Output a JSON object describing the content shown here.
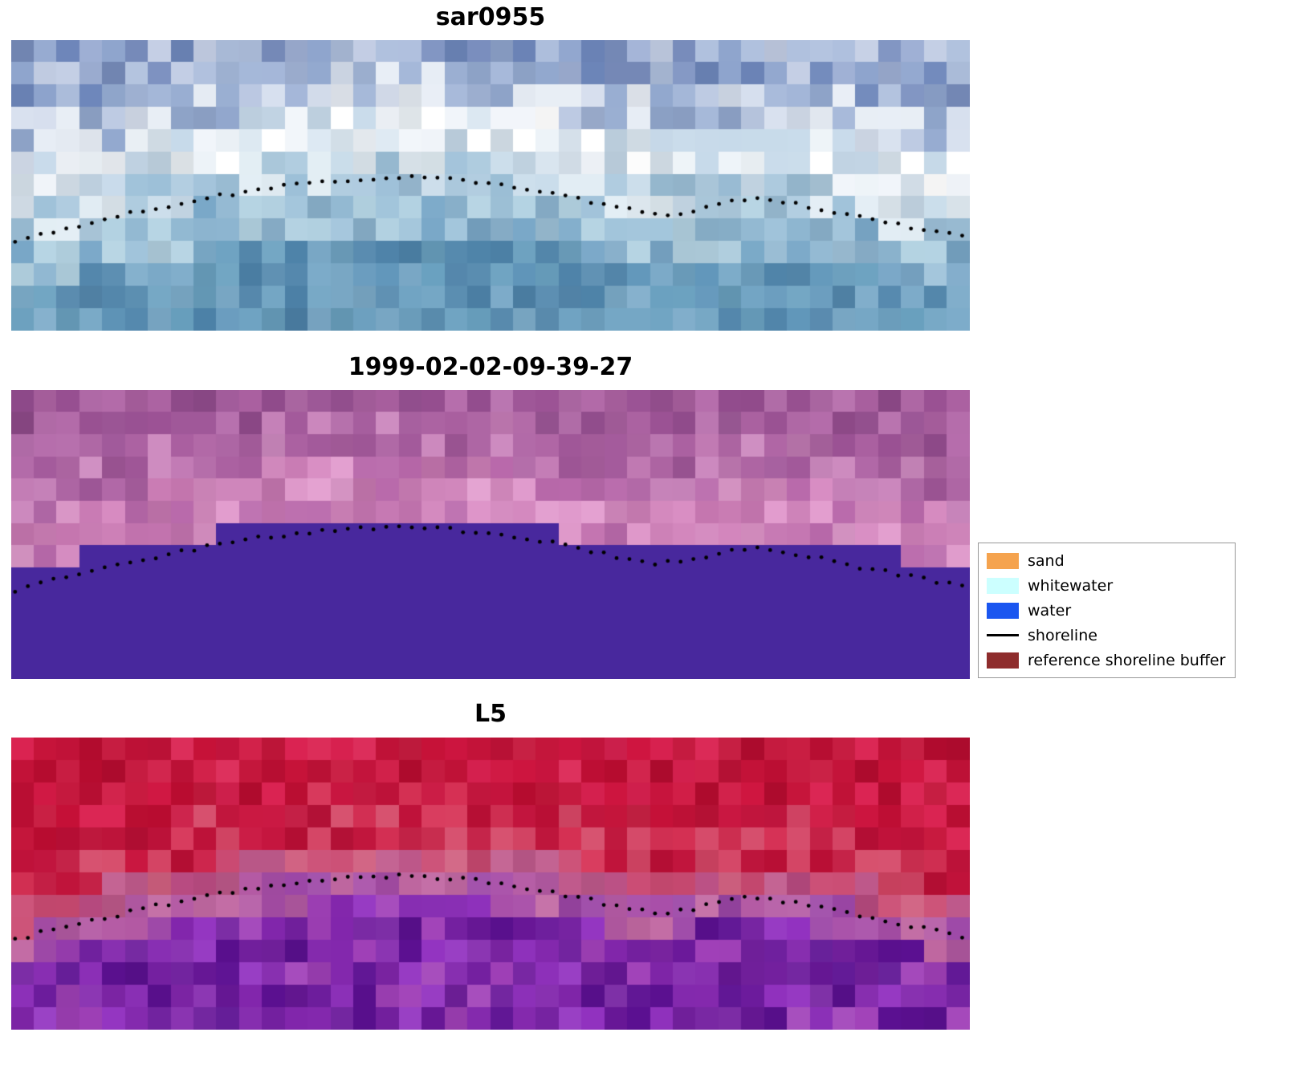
{
  "legend": {
    "items": [
      {
        "label": "sand",
        "swatch": "rect",
        "color": "#f5a34e"
      },
      {
        "label": "whitewater",
        "swatch": "rect",
        "color": "#ccffff"
      },
      {
        "label": "water",
        "swatch": "rect",
        "color": "#1a56f0"
      },
      {
        "label": "shoreline",
        "swatch": "line",
        "color": "#000000"
      },
      {
        "label": "reference shoreline buffer",
        "swatch": "rect",
        "color": "#8e2c2c"
      }
    ],
    "position": "outside center-right of middle panel"
  },
  "chart_data": {
    "type": "heatmap",
    "description": "Shoreline-detection figure with three co-registered coastal raster panels (SAR backscatter image, classified composite, Landsat 5 false-color) sharing one detected shoreline overlaid as small black dots; no axes or gridlines; legend at right.",
    "grid": false,
    "axes": "none",
    "dot_color": "#000000",
    "dot_radius_px": 2.4,
    "dot_count": 74,
    "noise": 0.16,
    "shoreline_xy": [
      [
        0.005,
        0.695
      ],
      [
        0.03,
        0.67
      ],
      [
        0.06,
        0.645
      ],
      [
        0.09,
        0.622
      ],
      [
        0.12,
        0.6
      ],
      [
        0.15,
        0.578
      ],
      [
        0.18,
        0.558
      ],
      [
        0.21,
        0.54
      ],
      [
        0.24,
        0.522
      ],
      [
        0.27,
        0.508
      ],
      [
        0.3,
        0.497
      ],
      [
        0.33,
        0.488
      ],
      [
        0.36,
        0.481
      ],
      [
        0.39,
        0.476
      ],
      [
        0.42,
        0.475
      ],
      [
        0.45,
        0.479
      ],
      [
        0.48,
        0.489
      ],
      [
        0.51,
        0.501
      ],
      [
        0.54,
        0.515
      ],
      [
        0.57,
        0.532
      ],
      [
        0.6,
        0.553
      ],
      [
        0.63,
        0.575
      ],
      [
        0.655,
        0.592
      ],
      [
        0.675,
        0.6
      ],
      [
        0.695,
        0.596
      ],
      [
        0.715,
        0.582
      ],
      [
        0.735,
        0.565
      ],
      [
        0.755,
        0.551
      ],
      [
        0.77,
        0.546
      ],
      [
        0.785,
        0.549
      ],
      [
        0.805,
        0.558
      ],
      [
        0.825,
        0.57
      ],
      [
        0.845,
        0.584
      ],
      [
        0.865,
        0.598
      ],
      [
        0.885,
        0.612
      ],
      [
        0.905,
        0.624
      ],
      [
        0.925,
        0.636
      ],
      [
        0.945,
        0.648
      ],
      [
        0.965,
        0.661
      ],
      [
        0.985,
        0.674
      ],
      [
        0.998,
        0.682
      ]
    ],
    "panels": [
      {
        "title": "sar0955",
        "kind": "sar-backscatter-rgb",
        "seed": 7,
        "grid": {
          "cols": 42,
          "rows": 13
        },
        "bands": [
          {
            "until": -0.42,
            "colors": [
              "#7b90c0",
              "#9fb0d5",
              "#6d86ba",
              "#c2cde4",
              "#8ea4cd",
              "#aebfdd"
            ]
          },
          {
            "until": -0.26,
            "colors": [
              "#b9c7e1",
              "#d6dfee",
              "#93a9cf",
              "#e7edf5",
              "#a3b6d8"
            ]
          },
          {
            "until": -0.1,
            "colors": [
              "#f1f5fa",
              "#ffffff",
              "#dce8f2",
              "#c7daea",
              "#edf3f8"
            ]
          },
          {
            "until": 0.03,
            "colors": [
              "#c9dcea",
              "#e2edf4",
              "#aecbdf",
              "#9dc0d8"
            ]
          },
          {
            "until": 0.18,
            "colors": [
              "#8db5d0",
              "#9fc3da",
              "#7aa8c8",
              "#b3d2e2"
            ]
          },
          {
            "until": 9,
            "colors": [
              "#6096ba",
              "#6fa3c2",
              "#5589ae",
              "#7cabc9",
              "#4d82a8",
              "#69a0bf"
            ]
          }
        ]
      },
      {
        "title": "1999-02-02-09-39-27",
        "kind": "classified-composite",
        "seed": 21,
        "grid": {
          "cols": 42,
          "rows": 13
        },
        "solid_below": {
          "offset": -0.05,
          "color": "#48289d",
          "quantize_cols": 3
        },
        "bands": [
          {
            "until": -0.4,
            "colors": [
              "#9d5396",
              "#aa60a0",
              "#8f4a8a",
              "#b56cab",
              "#984f92"
            ]
          },
          {
            "until": -0.24,
            "colors": [
              "#b167a6",
              "#c27ab4",
              "#a2589a",
              "#cc88be",
              "#aa5fa0"
            ]
          },
          {
            "until": -0.1,
            "colors": [
              "#c878b2",
              "#d88cc2",
              "#b868aa",
              "#e29cce",
              "#cc7eb6"
            ]
          },
          {
            "until": 9,
            "colors": [
              "#d284bc",
              "#c474b0",
              "#de94c8",
              "#ba6aac"
            ]
          }
        ]
      },
      {
        "title": "L5",
        "kind": "false-color-composite",
        "seed": 33,
        "grid": {
          "cols": 42,
          "rows": 13
        },
        "bands": [
          {
            "until": -0.3,
            "colors": [
              "#c50f36",
              "#cf1540",
              "#b90c30",
              "#da2150",
              "#c31238"
            ]
          },
          {
            "until": -0.12,
            "colors": [
              "#c91640",
              "#d63054",
              "#bc0f36",
              "#d44464",
              "#c0123a"
            ]
          },
          {
            "until": -0.03,
            "colors": [
              "#ca4a72",
              "#c05a8c",
              "#d06080",
              "#b84a80"
            ]
          },
          {
            "until": 0.08,
            "colors": [
              "#b45aa4",
              "#a84ea8",
              "#c168a2",
              "#9c46a6"
            ]
          },
          {
            "until": 9,
            "colors": [
              "#8226ac",
              "#7420a0",
              "#9232c0",
              "#6a189a",
              "#a040b8",
              "#5c1092"
            ]
          }
        ]
      }
    ]
  }
}
